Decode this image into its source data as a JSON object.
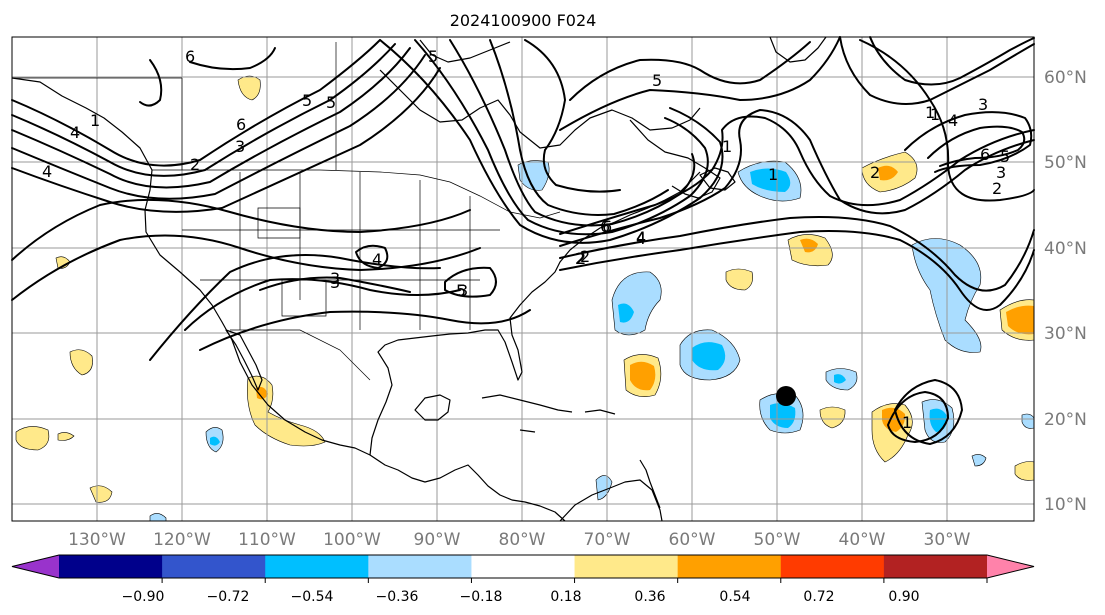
{
  "title": "2024100900 F024",
  "longitude_labels": [
    "130°W",
    "120°W",
    "110°W",
    "100°W",
    "90°W",
    "80°W",
    "70°W",
    "60°W",
    "50°W",
    "40°W",
    "30°W"
  ],
  "latitude_labels": [
    "60°N",
    "50°N",
    "40°N",
    "30°N",
    "20°N",
    "10°N"
  ],
  "contour_labels": [
    "6",
    "5",
    "4",
    "3",
    "2",
    "1",
    "6",
    "5",
    "4",
    "3",
    "2",
    "1",
    "4",
    "3",
    "2",
    "1",
    "6",
    "5",
    "4",
    "3",
    "2",
    "1",
    "2",
    "4",
    "6",
    "4",
    "3",
    "5",
    "1",
    "6",
    "5",
    "3",
    "2",
    "1",
    "5"
  ],
  "colorbar": {
    "tick_labels": [
      "−0.90",
      "−0.72",
      "−0.54",
      "−0.36",
      "−0.18",
      "0.18",
      "0.36",
      "0.54",
      "0.72",
      "0.90"
    ],
    "colors": [
      "#9933cc",
      "#00008b",
      "#3355cc",
      "#00bfff",
      "#aaddff",
      "#ffffff",
      "#ffe98a",
      "#ffa000",
      "#ff3b00",
      "#b22222",
      "#ff82aa"
    ]
  },
  "storm_marker_color": "#000000"
}
